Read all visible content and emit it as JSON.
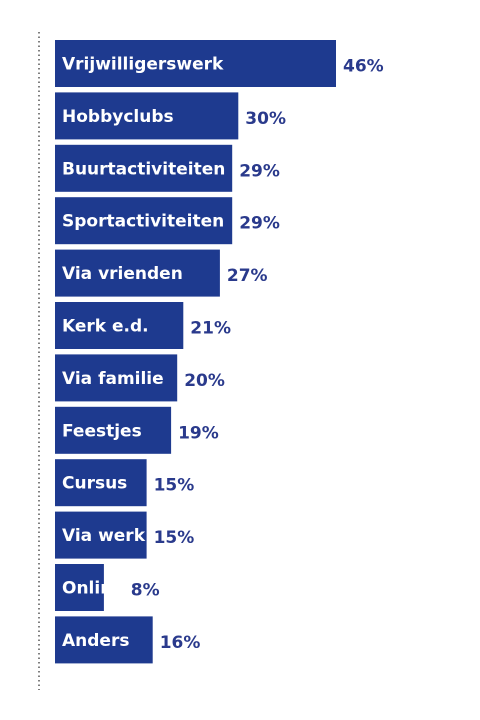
{
  "chart_data": {
    "type": "bar",
    "orientation": "horizontal",
    "title": "",
    "xlabel": "",
    "ylabel": "",
    "categories": [
      "Vrijwilligerswerk",
      "Hobbyclubs",
      "Buurtactiviteiten",
      "Sportactiviteiten",
      "Via vrienden",
      "Kerk e.d.",
      "Via familie",
      "Feestjes",
      "Cursus",
      "Via werk",
      "Online",
      "Anders"
    ],
    "values": [
      46,
      30,
      29,
      29,
      27,
      21,
      20,
      19,
      15,
      15,
      8,
      16
    ],
    "value_labels": [
      "46%",
      "30%",
      "29%",
      "29%",
      "27%",
      "21%",
      "20%",
      "19%",
      "15%",
      "15%",
      "8%",
      "16%"
    ],
    "unit": "%",
    "xlim": [
      0,
      46
    ],
    "grid": false,
    "legend": "none",
    "colors": {
      "bar": "#1e3a8f",
      "bar_label": "#ffffff",
      "value_label": "#2a3a8c",
      "axis_line": "#555555"
    }
  }
}
